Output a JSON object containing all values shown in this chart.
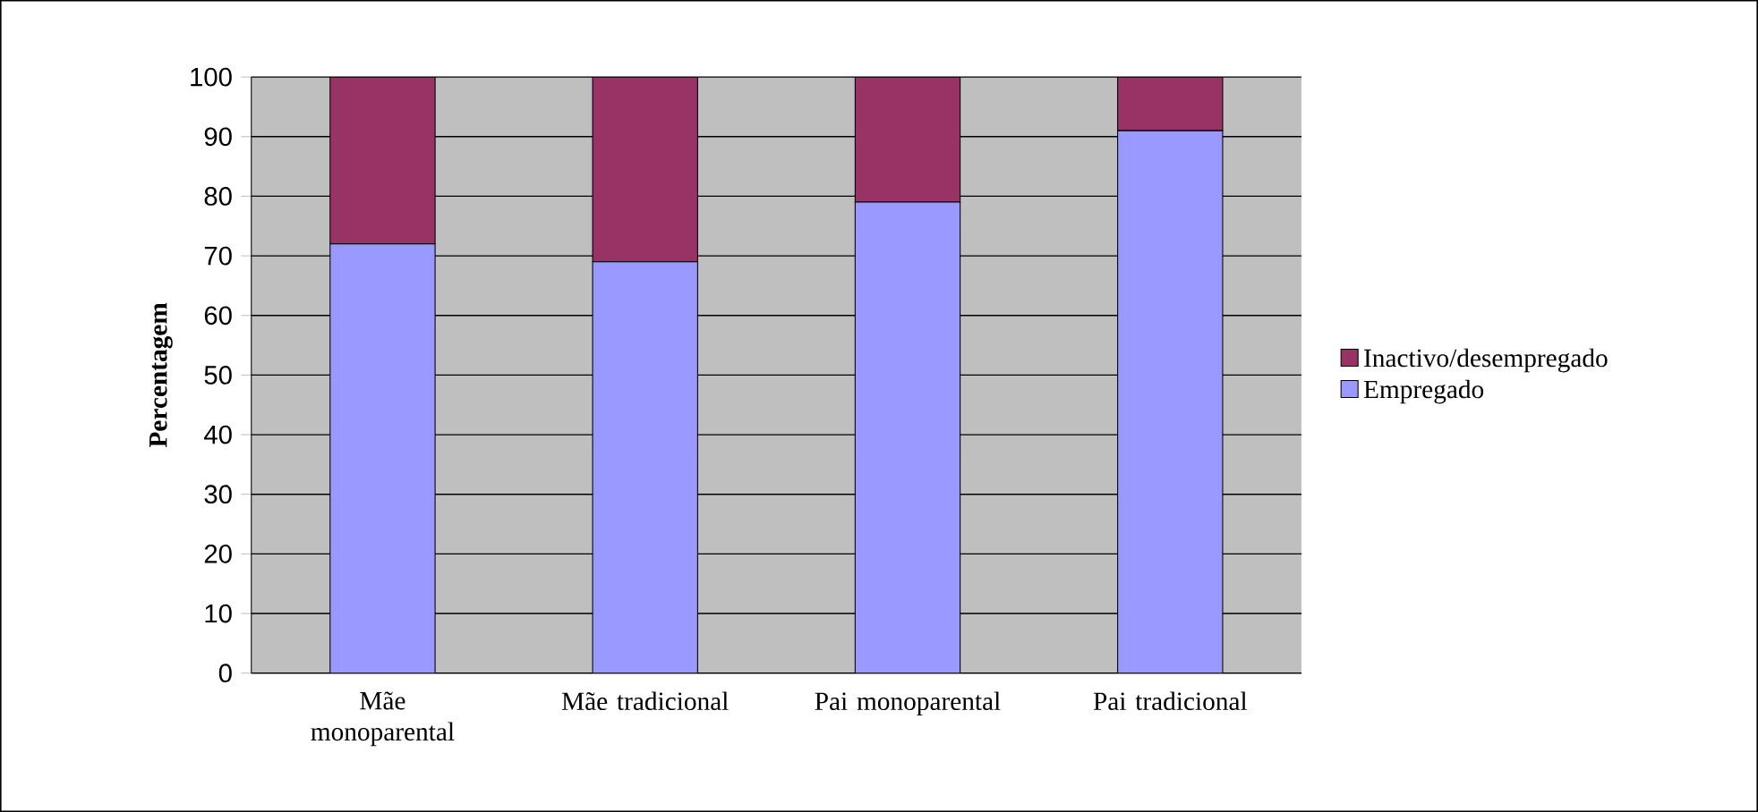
{
  "chart_data": {
    "type": "bar",
    "stacked": true,
    "ylabel": "Percentagem",
    "categories": [
      "Mãe monoparental",
      "Mãe tradicional",
      "Pai monoparental",
      "Pai tradicional"
    ],
    "series": [
      {
        "name": "Empregado",
        "color": "#9999ff",
        "values": [
          72,
          69,
          79,
          91
        ]
      },
      {
        "name": "Inactivo/desempregado",
        "color": "#993366",
        "values": [
          28,
          31,
          21,
          9
        ]
      }
    ],
    "ylim": [
      0,
      100
    ],
    "yticks": [
      0,
      10,
      20,
      30,
      40,
      50,
      60,
      70,
      80,
      90,
      100
    ],
    "grid": "y",
    "legend": "right"
  }
}
